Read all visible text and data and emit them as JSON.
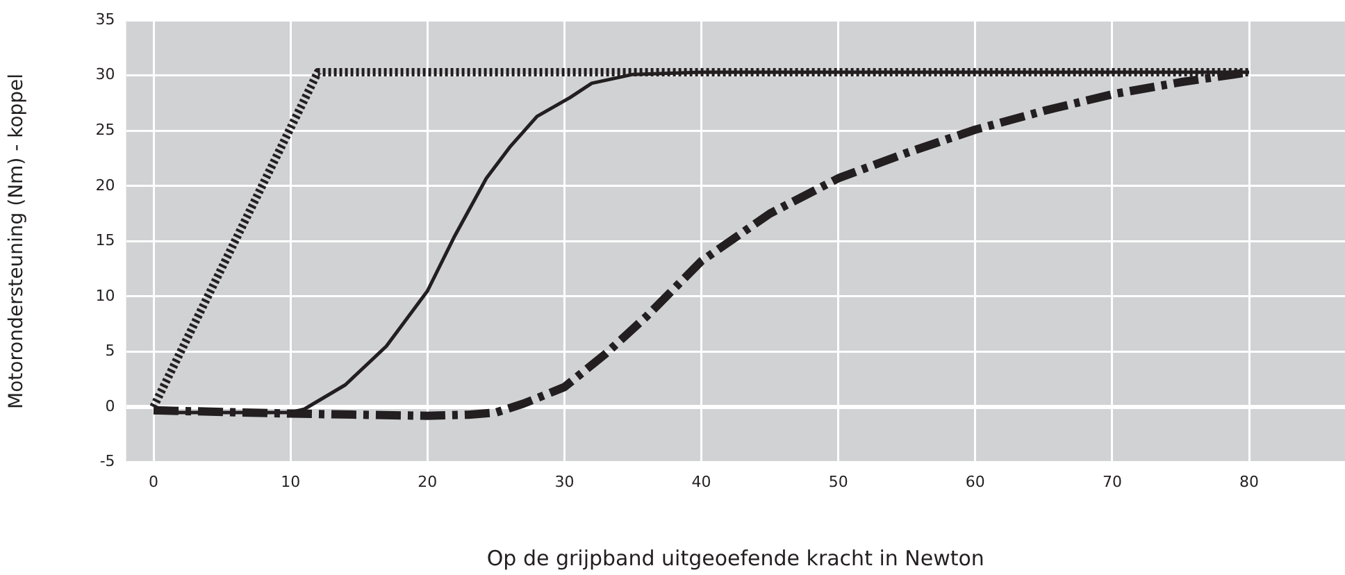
{
  "chart_data": {
    "type": "line",
    "xlabel": "Op de grijpband uitgeoefende kracht in Newton",
    "ylabel": "Motorondersteuning (Nm) - koppel",
    "xlim": [
      -2,
      87
    ],
    "xticks": [
      0,
      10,
      20,
      30,
      40,
      50,
      60,
      70,
      80
    ],
    "ylim": [
      -5,
      35
    ],
    "yticks": [
      -5,
      0,
      5,
      10,
      15,
      20,
      25,
      30,
      35
    ],
    "grid": true,
    "legend": false,
    "marker": "none",
    "series": [
      {
        "color": "#231f20",
        "line_style": "dotted",
        "x": [
          0,
          12,
          80
        ],
        "values": [
          0,
          30.3,
          30.3
        ]
      },
      {
        "color": "#231f20",
        "line_style": "solid",
        "x": [
          0,
          10,
          11,
          14,
          17,
          20,
          22,
          24.3,
          26,
          28,
          30.4,
          32,
          35,
          40,
          80
        ],
        "values": [
          -0.5,
          -0.5,
          -0.2,
          2,
          5.5,
          10.5,
          15.5,
          20.7,
          23.5,
          26.3,
          28,
          29.3,
          30.1,
          30.3,
          30.3
        ]
      },
      {
        "color": "#231f20",
        "line_style": "dashdot",
        "x": [
          0,
          10,
          20,
          23,
          25,
          27,
          30,
          33,
          36,
          40,
          45,
          50,
          55,
          60,
          65,
          70,
          75,
          80
        ],
        "values": [
          -0.3,
          -0.6,
          -0.8,
          -0.7,
          -0.5,
          0.3,
          1.8,
          4.8,
          8.2,
          13.2,
          17.5,
          20.7,
          23,
          25.1,
          26.8,
          28.3,
          29.4,
          30.3
        ]
      }
    ]
  }
}
